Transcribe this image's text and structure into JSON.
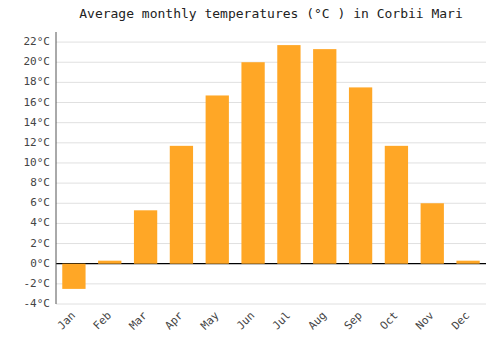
{
  "chart_data": {
    "type": "bar",
    "title": "Average monthly temperatures (°C ) in Corbii Mari",
    "categories": [
      "Jan",
      "Feb",
      "Mar",
      "Apr",
      "May",
      "Jun",
      "Jul",
      "Aug",
      "Sep",
      "Oct",
      "Nov",
      "Dec"
    ],
    "values": [
      -2.5,
      0.3,
      5.3,
      11.7,
      16.7,
      20.0,
      21.7,
      21.3,
      17.5,
      11.7,
      6.0,
      0.3
    ],
    "color": "#FFA726",
    "ylim": [
      -4,
      23
    ],
    "yticks": [
      {
        "value": -4,
        "label": "-4°C"
      },
      {
        "value": -2,
        "label": "-2°C"
      },
      {
        "value": 0,
        "label": "0°C"
      },
      {
        "value": 2,
        "label": "2°C"
      },
      {
        "value": 4,
        "label": "4°C"
      },
      {
        "value": 6,
        "label": "6°C"
      },
      {
        "value": 8,
        "label": "8°C"
      },
      {
        "value": 10,
        "label": "10°C"
      },
      {
        "value": 12,
        "label": "12°C"
      },
      {
        "value": 14,
        "label": "14°C"
      },
      {
        "value": 16,
        "label": "16°C"
      },
      {
        "value": 18,
        "label": "18°C"
      },
      {
        "value": 20,
        "label": "20°C"
      },
      {
        "value": 22,
        "label": "22°C"
      }
    ],
    "grid": true
  }
}
